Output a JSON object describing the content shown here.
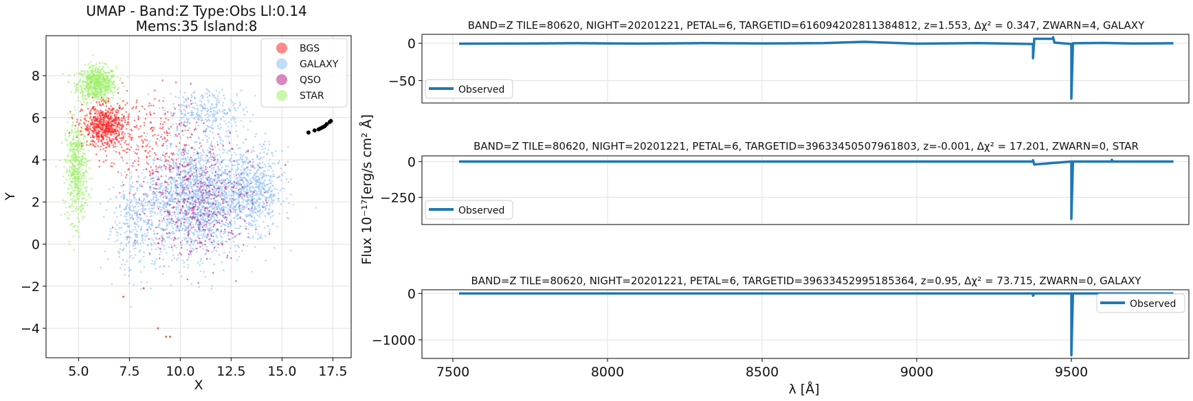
{
  "chart_data": [
    {
      "type": "scatter",
      "title": "UMAP  -  Band:Z Type:Obs Ll:0.14",
      "subtitle": "Mems:35 Island:8",
      "xlabel": "X",
      "ylabel": "Y",
      "xlim": [
        3.4,
        18.4
      ],
      "ylim": [
        -5.4,
        9.9
      ],
      "xticks": [
        "5.0",
        "7.5",
        "10.0",
        "12.5",
        "15.0",
        "17.5"
      ],
      "yticks": [
        "−4",
        "−2",
        "0",
        "2",
        "4",
        "6",
        "8"
      ],
      "grid": true,
      "legend_position": "top-right",
      "series": [
        {
          "name": "BGS",
          "color": "#ff2a2a",
          "clusters": [
            {
              "center": [
                6.3,
                5.6
              ],
              "spread": [
                0.9,
                0.8
              ],
              "count": 650
            },
            {
              "center": [
                8.6,
                5.0
              ],
              "spread": [
                2.2,
                1.8
              ],
              "count": 250
            }
          ]
        },
        {
          "name": "GALAXY",
          "color": "#8fbef3",
          "clusters": [
            {
              "center": [
                10.8,
                2.2
              ],
              "spread": [
                2.0,
                2.3
              ],
              "count": 1800
            },
            {
              "center": [
                13.6,
                2.6
              ],
              "spread": [
                1.2,
                1.6
              ],
              "count": 650
            },
            {
              "center": [
                11.3,
                6.3
              ],
              "spread": [
                1.6,
                0.9
              ],
              "count": 300
            },
            {
              "center": [
                7.8,
                1.0
              ],
              "spread": [
                1.2,
                2.0
              ],
              "count": 350
            }
          ]
        },
        {
          "name": "QSO",
          "color": "#b8278a",
          "clusters": [
            {
              "center": [
                10.8,
                2.1
              ],
              "spread": [
                2.2,
                2.3
              ],
              "count": 450
            }
          ]
        },
        {
          "name": "STAR",
          "color": "#9ef06a",
          "clusters": [
            {
              "center": [
                5.9,
                7.6
              ],
              "spread": [
                0.8,
                0.7
              ],
              "count": 700
            },
            {
              "center": [
                4.9,
                3.5
              ],
              "spread": [
                0.45,
                2.0
              ],
              "count": 550
            }
          ]
        }
      ],
      "highlight": {
        "color": "#000000",
        "points": [
          [
            16.3,
            5.3
          ],
          [
            16.6,
            5.4
          ],
          [
            16.9,
            5.5
          ],
          [
            17.1,
            5.6
          ],
          [
            17.2,
            5.7
          ],
          [
            17.35,
            5.8
          ],
          [
            17.4,
            5.85
          ],
          [
            17.0,
            5.55
          ],
          [
            16.8,
            5.45
          ]
        ]
      },
      "outliers": {
        "color": "#d46a5a",
        "points": [
          [
            8.9,
            -4.0
          ],
          [
            9.3,
            -4.4
          ],
          [
            9.5,
            -4.4
          ],
          [
            7.2,
            -2.5
          ],
          [
            8.2,
            -2.1
          ]
        ]
      }
    },
    {
      "type": "line",
      "title": "BAND=Z TILE=80620, NIGHT=20201221, PETAL=6, TARGETID=616094202811384812, z=1.553, Δχ² = 0.347, ZWARN=4, GALAXY",
      "xlim": [
        7400,
        9880
      ],
      "ylim": [
        -80,
        12
      ],
      "yticks": [
        "0",
        "−50"
      ],
      "ytick_values": [
        0,
        -50
      ],
      "legend_position": "lower-left",
      "series": [
        {
          "name": "Observed",
          "color": "#1f77b4",
          "x": [
            7520,
            7700,
            7900,
            8100,
            8300,
            8500,
            8700,
            8830,
            9000,
            9200,
            9376,
            9376,
            9380,
            9441,
            9441,
            9445,
            9500,
            9500,
            9505,
            9600,
            9700,
            9830
          ],
          "y": [
            -0.5,
            -0.3,
            0.1,
            -0.4,
            0.2,
            -0.2,
            0.3,
            2.0,
            -0.5,
            0.2,
            -1,
            -20,
            6,
            6,
            8,
            1,
            -1,
            -74,
            0,
            0.5,
            -0.3,
            0
          ]
        }
      ]
    },
    {
      "type": "line",
      "title": "BAND=Z TILE=80620, NIGHT=20201221, PETAL=6, TARGETID=39633450507961803, z=-0.001, Δχ² = 17.201, ZWARN=0, STAR",
      "xlim": [
        7400,
        9880
      ],
      "ylim": [
        -440,
        40
      ],
      "yticks": [
        "0",
        "−250"
      ],
      "ytick_values": [
        0,
        -250
      ],
      "legend_position": "lower-left",
      "series": [
        {
          "name": "Observed",
          "color": "#1f77b4",
          "x": [
            7520,
            7800,
            8100,
            8400,
            8700,
            9000,
            9300,
            9376,
            9376,
            9380,
            9500,
            9500,
            9505,
            9631,
            9631,
            9635,
            9830
          ],
          "y": [
            0,
            0,
            0,
            0,
            0,
            0,
            0,
            0,
            10,
            -20,
            0,
            -400,
            0,
            0,
            12,
            0,
            0
          ]
        }
      ]
    },
    {
      "type": "line",
      "title": "BAND=Z TILE=80620, NIGHT=20201221, PETAL=6, TARGETID=39633452995185364, z=0.95, Δχ² = 73.715, ZWARN=0, GALAXY",
      "xlabel": "λ [Å]",
      "xlim": [
        7400,
        9880
      ],
      "ylim": [
        -1400,
        80
      ],
      "yticks": [
        "0",
        "−1000"
      ],
      "ytick_values": [
        0,
        -1000
      ],
      "xticks": [
        "7500",
        "8000",
        "8500",
        "9000",
        "9500"
      ],
      "xtick_values": [
        7500,
        8000,
        8500,
        9000,
        9500
      ],
      "legend_position": "right",
      "series": [
        {
          "name": "Observed",
          "color": "#1f77b4",
          "x": [
            7520,
            7800,
            8100,
            8400,
            8700,
            9000,
            9300,
            9376,
            9376,
            9380,
            9500,
            9500,
            9505,
            9830
          ],
          "y": [
            0,
            0,
            0,
            0,
            0,
            0,
            0,
            0,
            -50,
            0,
            0,
            -1330,
            0,
            0
          ]
        }
      ]
    }
  ],
  "shared_ylabel": "Flux 10⁻¹⁷[erg/s cm² Å]"
}
